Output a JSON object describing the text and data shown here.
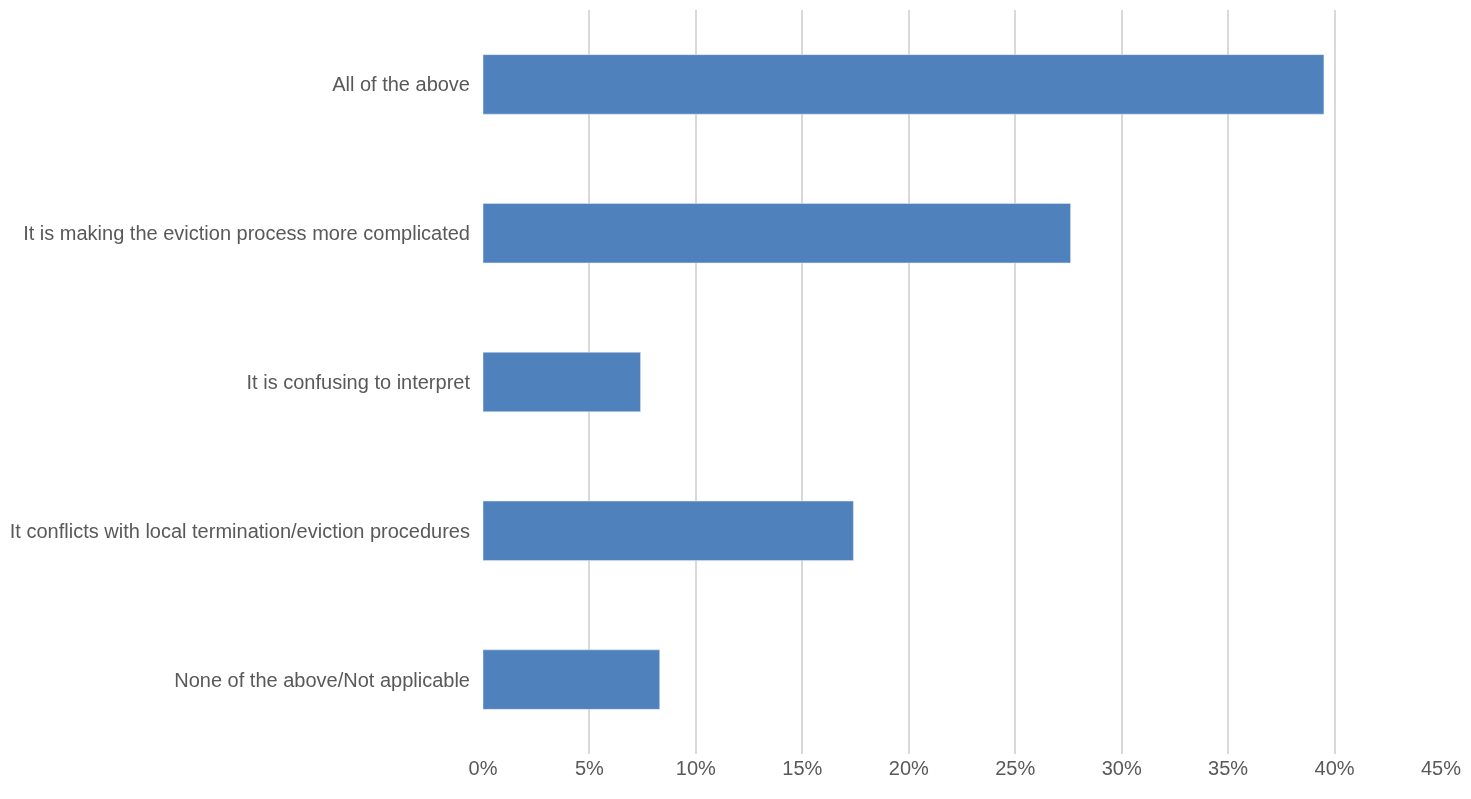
{
  "chart_data": {
    "type": "bar",
    "orientation": "horizontal",
    "categories": [
      "All of the above",
      "It is making the eviction process more complicated",
      "It is confusing to interpret",
      "It conflicts with local termination/eviction procedures",
      "None of the above/Not applicable"
    ],
    "values": [
      39.5,
      27.6,
      7.4,
      17.4,
      8.3
    ],
    "color": "#4f81bd",
    "xlim": [
      0,
      45
    ],
    "xticks": [
      {
        "value": 0,
        "label": "0%"
      },
      {
        "value": 5,
        "label": "5%"
      },
      {
        "value": 10,
        "label": "10%"
      },
      {
        "value": 15,
        "label": "15%"
      },
      {
        "value": 20,
        "label": "20%"
      },
      {
        "value": 25,
        "label": "25%"
      },
      {
        "value": 30,
        "label": "30%"
      },
      {
        "value": 35,
        "label": "35%"
      },
      {
        "value": 40,
        "label": "40%"
      },
      {
        "value": 45,
        "label": "45%"
      }
    ],
    "grid": "x"
  }
}
